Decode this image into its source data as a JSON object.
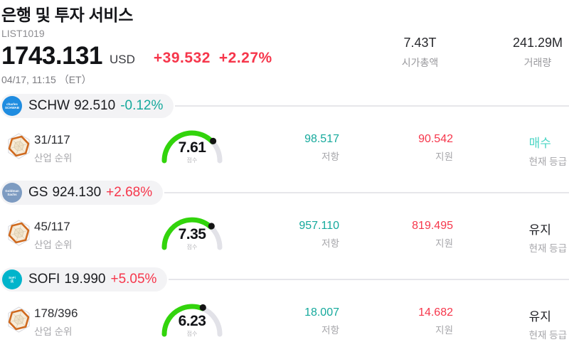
{
  "colors": {
    "red": "#f6364b",
    "teal": "#15a99c",
    "buy_teal": "#4cd6c5",
    "dark": "#1d1e23",
    "gauge_green": "#32d40c",
    "gauge_gray": "#e2e2e8",
    "gauge_dot": "#141414"
  },
  "header": {
    "title": "은행 및 투자 서비스",
    "list_id": "LIST1019",
    "price": "1743.131",
    "currency": "USD",
    "change_abs": "+39.532",
    "change_pct": "+2.27%",
    "datetime": "04/17, 11:15 （ET）",
    "market_cap": {
      "value": "7.43T",
      "label": "시가총액"
    },
    "volume": {
      "value": "241.29M",
      "label": "거래량"
    }
  },
  "labels": {
    "rank": "산업 순위",
    "score": "점수",
    "resistance": "저항",
    "support": "지원",
    "rating": "현재 등급"
  },
  "stocks": [
    {
      "ticker": "SCHW",
      "price": "92.510",
      "change": "-0.12%",
      "change_color": "#15a99c",
      "logo_bg": "#1f8ce0",
      "logo_line1": "charles",
      "logo_line2": "SCHWAB",
      "rank": "31/117",
      "score": "7.61",
      "resistance": "98.517",
      "support": "90.542",
      "rating": "매수",
      "rating_color": "#4cd6c5"
    },
    {
      "ticker": "GS",
      "price": "924.130",
      "change": "+2.68%",
      "change_color": "#f6364b",
      "logo_bg": "#7d9bc1",
      "logo_line1": "Goldman",
      "logo_line2": "Sachs",
      "rank": "45/117",
      "score": "7.35",
      "resistance": "957.110",
      "support": "819.495",
      "rating": "유지",
      "rating_color": "#1d1e23"
    },
    {
      "ticker": "SOFI",
      "price": "19.990",
      "change": "+5.05%",
      "change_color": "#f6364b",
      "logo_bg": "#00b4cb",
      "logo_line1": "SoFi",
      "logo_line2": "氏",
      "rank": "178/396",
      "score": "6.23",
      "resistance": "18.007",
      "support": "14.682",
      "rating": "유지",
      "rating_color": "#1d1e23"
    }
  ]
}
